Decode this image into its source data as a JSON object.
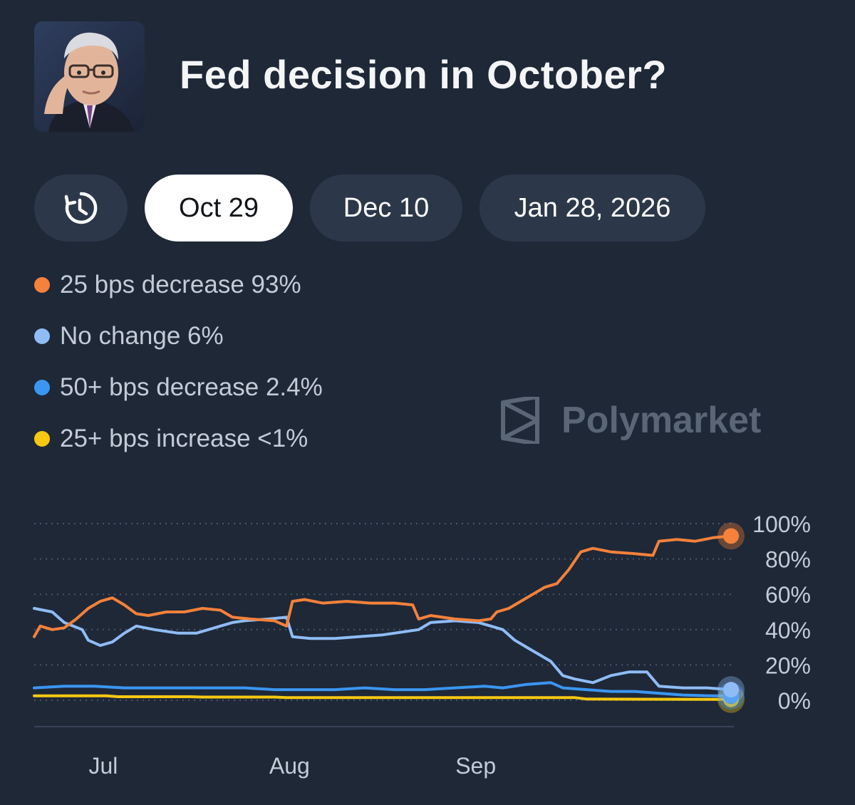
{
  "header": {
    "title": "Fed decision in October?",
    "avatar_icon": "portrait-photo"
  },
  "tabs": [
    {
      "label": "",
      "icon": "history-clock-icon",
      "active": false
    },
    {
      "label": "Oct 29",
      "active": true
    },
    {
      "label": "Dec 10",
      "active": false
    },
    {
      "label": "Jan 28, 2026",
      "active": false
    }
  ],
  "legend": [
    {
      "label": "25 bps decrease 93%",
      "color": "#f5813a"
    },
    {
      "label": "No change 6%",
      "color": "#8fbcf5"
    },
    {
      "label": "50+ bps decrease 2.4%",
      "color": "#3a96f2"
    },
    {
      "label": "25+ bps increase <1%",
      "color": "#f7c811"
    }
  ],
  "watermark": {
    "text": "Polymarket",
    "icon": "polymarket-logo-icon"
  },
  "chart_data": {
    "type": "line",
    "x_ticks": [
      "Jul",
      "Aug",
      "Sep"
    ],
    "x_tick_values": [
      11.5,
      42.5,
      73.5
    ],
    "y_ticks": [
      "100%",
      "80%",
      "60%",
      "40%",
      "20%",
      "0%"
    ],
    "y_tick_values": [
      100,
      80,
      60,
      40,
      20,
      0
    ],
    "ylim": [
      0,
      100
    ],
    "xlim": [
      0,
      116
    ],
    "grid": true,
    "series": [
      {
        "name": "25 bps decrease",
        "color": "#f5813a",
        "points": [
          [
            0,
            36
          ],
          [
            1,
            42
          ],
          [
            3,
            40
          ],
          [
            5,
            41
          ],
          [
            7,
            46
          ],
          [
            9,
            52
          ],
          [
            11,
            56
          ],
          [
            13,
            58
          ],
          [
            15,
            54
          ],
          [
            17,
            49
          ],
          [
            19,
            48
          ],
          [
            22,
            50
          ],
          [
            25,
            50
          ],
          [
            28,
            52
          ],
          [
            31,
            51
          ],
          [
            33,
            47
          ],
          [
            36,
            46
          ],
          [
            40,
            45
          ],
          [
            42,
            42
          ],
          [
            43,
            56
          ],
          [
            45,
            57
          ],
          [
            48,
            55
          ],
          [
            52,
            56
          ],
          [
            56,
            55
          ],
          [
            60,
            55
          ],
          [
            63,
            54
          ],
          [
            64,
            46
          ],
          [
            66,
            48
          ],
          [
            70,
            46
          ],
          [
            74,
            45
          ],
          [
            76,
            46
          ],
          [
            77,
            50
          ],
          [
            79,
            52
          ],
          [
            81,
            56
          ],
          [
            83,
            60
          ],
          [
            85,
            64
          ],
          [
            87,
            66
          ],
          [
            89,
            74
          ],
          [
            91,
            84
          ],
          [
            93,
            86
          ],
          [
            96,
            84
          ],
          [
            100,
            83
          ],
          [
            103,
            82
          ],
          [
            104,
            90
          ],
          [
            107,
            91
          ],
          [
            110,
            90
          ],
          [
            113,
            92
          ],
          [
            116,
            93
          ]
        ]
      },
      {
        "name": "No change",
        "color": "#8fbcf5",
        "points": [
          [
            0,
            52
          ],
          [
            3,
            50
          ],
          [
            5,
            44
          ],
          [
            8,
            40
          ],
          [
            9,
            34
          ],
          [
            11,
            31
          ],
          [
            13,
            33
          ],
          [
            15,
            38
          ],
          [
            17,
            42
          ],
          [
            20,
            40
          ],
          [
            24,
            38
          ],
          [
            27,
            38
          ],
          [
            29,
            40
          ],
          [
            31,
            42
          ],
          [
            33,
            44
          ],
          [
            35,
            45
          ],
          [
            39,
            46
          ],
          [
            42,
            47
          ],
          [
            43,
            36
          ],
          [
            46,
            35
          ],
          [
            50,
            35
          ],
          [
            54,
            36
          ],
          [
            58,
            37
          ],
          [
            62,
            39
          ],
          [
            64,
            40
          ],
          [
            66,
            44
          ],
          [
            70,
            45
          ],
          [
            74,
            44
          ],
          [
            76,
            42
          ],
          [
            78,
            40
          ],
          [
            80,
            34
          ],
          [
            82,
            30
          ],
          [
            84,
            26
          ],
          [
            86,
            22
          ],
          [
            88,
            14
          ],
          [
            90,
            12
          ],
          [
            93,
            10
          ],
          [
            96,
            14
          ],
          [
            99,
            16
          ],
          [
            102,
            16
          ],
          [
            104,
            8
          ],
          [
            108,
            7
          ],
          [
            112,
            7
          ],
          [
            116,
            6
          ]
        ]
      },
      {
        "name": "50+ bps decrease",
        "color": "#3a96f2",
        "points": [
          [
            0,
            7
          ],
          [
            5,
            8
          ],
          [
            10,
            8
          ],
          [
            15,
            7
          ],
          [
            20,
            7
          ],
          [
            25,
            7
          ],
          [
            30,
            7
          ],
          [
            35,
            7
          ],
          [
            40,
            6
          ],
          [
            45,
            6
          ],
          [
            50,
            6
          ],
          [
            55,
            7
          ],
          [
            60,
            6
          ],
          [
            65,
            6
          ],
          [
            70,
            7
          ],
          [
            75,
            8
          ],
          [
            78,
            7
          ],
          [
            82,
            9
          ],
          [
            86,
            10
          ],
          [
            88,
            7
          ],
          [
            92,
            6
          ],
          [
            96,
            5
          ],
          [
            100,
            5
          ],
          [
            104,
            4
          ],
          [
            108,
            3
          ],
          [
            112,
            2.6
          ],
          [
            116,
            2.4
          ]
        ]
      },
      {
        "name": "25+ bps increase",
        "color": "#f7c811",
        "points": [
          [
            0,
            2.5
          ],
          [
            12,
            2.5
          ],
          [
            14,
            2
          ],
          [
            26,
            2
          ],
          [
            28,
            1.8
          ],
          [
            40,
            1.8
          ],
          [
            42,
            1.5
          ],
          [
            90,
            1.5
          ],
          [
            92,
            0.7
          ],
          [
            116,
            0.5
          ]
        ]
      }
    ]
  }
}
